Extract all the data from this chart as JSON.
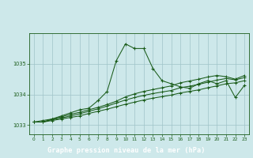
{
  "title": "Graphe pression niveau de la mer (hPa)",
  "bg_color": "#cde8ea",
  "plot_bg_color": "#cde8ea",
  "label_bg_color": "#2d6b2d",
  "grid_color": "#a0c4c8",
  "line_color": "#1a5c1a",
  "text_color": "#1a5c1a",
  "label_text_color": "#ffffff",
  "xlim": [
    -0.5,
    23.5
  ],
  "ylim": [
    1032.7,
    1036.0
  ],
  "yticks": [
    1033,
    1034,
    1035
  ],
  "xticks": [
    0,
    1,
    2,
    3,
    4,
    5,
    6,
    7,
    8,
    9,
    10,
    11,
    12,
    13,
    14,
    15,
    16,
    17,
    18,
    19,
    20,
    21,
    22,
    23
  ],
  "series_main": {
    "x": [
      0,
      1,
      2,
      3,
      4,
      5,
      6,
      7,
      8,
      9,
      10,
      11,
      12,
      13,
      14,
      15,
      16,
      17,
      18,
      19,
      20,
      21,
      22,
      23
    ],
    "y": [
      1033.1,
      1033.15,
      1033.2,
      1033.3,
      1033.4,
      1033.5,
      1033.55,
      1033.8,
      1034.1,
      1035.1,
      1035.65,
      1035.5,
      1035.5,
      1034.85,
      1034.45,
      1034.35,
      1034.25,
      1034.2,
      1034.35,
      1034.45,
      1034.35,
      1034.45,
      1033.9,
      1034.3
    ]
  },
  "series1": {
    "x": [
      0,
      1,
      2,
      3,
      4,
      5,
      6,
      7,
      8,
      9,
      10,
      11,
      12,
      13,
      14,
      15,
      16,
      17,
      18,
      19,
      20,
      21,
      22,
      23
    ],
    "y": [
      1033.1,
      1033.1,
      1033.15,
      1033.2,
      1033.25,
      1033.3,
      1033.38,
      1033.45,
      1033.52,
      1033.6,
      1033.68,
      1033.75,
      1033.82,
      1033.88,
      1033.93,
      1033.98,
      1034.05,
      1034.1,
      1034.15,
      1034.22,
      1034.28,
      1034.35,
      1034.38,
      1034.45
    ]
  },
  "series2": {
    "x": [
      0,
      1,
      2,
      3,
      4,
      5,
      6,
      7,
      8,
      9,
      10,
      11,
      12,
      13,
      14,
      15,
      16,
      17,
      18,
      19,
      20,
      21,
      22,
      23
    ],
    "y": [
      1033.1,
      1033.1,
      1033.18,
      1033.23,
      1033.3,
      1033.37,
      1033.45,
      1033.53,
      1033.62,
      1033.72,
      1033.82,
      1033.9,
      1033.97,
      1034.03,
      1034.08,
      1034.13,
      1034.22,
      1034.27,
      1034.33,
      1034.4,
      1034.47,
      1034.52,
      1034.48,
      1034.55
    ]
  },
  "series3": {
    "x": [
      0,
      1,
      2,
      3,
      4,
      5,
      6,
      7,
      8,
      9,
      10,
      11,
      12,
      13,
      14,
      15,
      16,
      17,
      18,
      19,
      20,
      21,
      22,
      23
    ],
    "y": [
      1033.1,
      1033.1,
      1033.2,
      1033.27,
      1033.35,
      1033.42,
      1033.5,
      1033.58,
      1033.67,
      1033.78,
      1033.92,
      1034.02,
      1034.1,
      1034.16,
      1034.22,
      1034.28,
      1034.38,
      1034.44,
      1034.5,
      1034.57,
      1034.62,
      1034.58,
      1034.5,
      1034.62
    ]
  }
}
